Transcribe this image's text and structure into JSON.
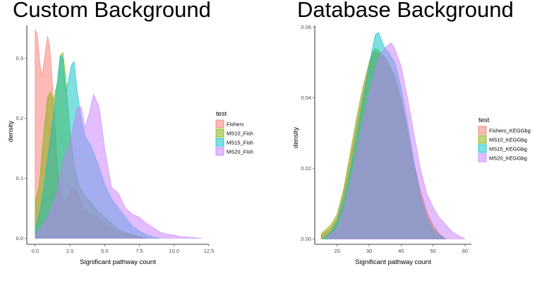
{
  "titles": {
    "left": "Custom Background",
    "right": "Database Background"
  },
  "chart_data": [
    {
      "type": "area",
      "title": "Custom Background",
      "xlabel": "Significant pathway count",
      "ylabel": "density",
      "xlim": [
        -0.6,
        12.5
      ],
      "ylim": [
        -0.01,
        0.355
      ],
      "xticks": [
        0,
        2.5,
        5,
        7.5,
        10,
        12.5
      ],
      "xtick_labels": [
        "0.0",
        "2.5",
        "5.0",
        "7.5",
        "10.0",
        "12.5"
      ],
      "yticks": [
        0,
        0.1,
        0.2,
        0.3
      ],
      "ytick_labels": [
        "0.0",
        "0.1",
        "0.2",
        "0.3"
      ],
      "grid": false,
      "legend_title": "test",
      "legend_position": "right",
      "series": [
        {
          "name": "Fishers",
          "color": "#F8766D",
          "x": [
            0,
            0.15,
            0.35,
            0.5,
            0.7,
            0.9,
            1.05,
            1.2,
            1.4,
            1.6,
            1.8,
            2.0,
            2.3,
            2.6,
            3.0,
            3.5,
            4.0,
            4.5,
            5.0,
            5.5,
            6.0,
            6.5,
            7.0,
            7.5,
            8.0
          ],
          "y": [
            0.348,
            0.34,
            0.29,
            0.27,
            0.305,
            0.337,
            0.32,
            0.27,
            0.2,
            0.12,
            0.075,
            0.06,
            0.065,
            0.085,
            0.08,
            0.05,
            0.04,
            0.035,
            0.025,
            0.018,
            0.01,
            0.008,
            0.006,
            0.003,
            0.0
          ]
        },
        {
          "name": "MS10_Fish",
          "color": "#7CAE00",
          "x": [
            0,
            0.3,
            0.6,
            0.9,
            1.1,
            1.3,
            1.6,
            1.8,
            2.0,
            2.2,
            2.5,
            2.8,
            3.2,
            3.6,
            4.0,
            4.5,
            5.0,
            5.5,
            6.0,
            6.5,
            7.0,
            7.5,
            8.0
          ],
          "y": [
            0.06,
            0.09,
            0.17,
            0.235,
            0.244,
            0.23,
            0.26,
            0.305,
            0.31,
            0.27,
            0.18,
            0.12,
            0.085,
            0.07,
            0.06,
            0.045,
            0.035,
            0.025,
            0.015,
            0.01,
            0.006,
            0.003,
            0.0
          ]
        },
        {
          "name": "MS15_Fish",
          "color": "#00BFC4",
          "x": [
            0,
            0.3,
            0.6,
            1.0,
            1.4,
            1.8,
            2.0,
            2.2,
            2.4,
            2.6,
            2.8,
            3.0,
            3.3,
            3.6,
            4.0,
            4.5,
            5.0,
            5.5,
            6.0,
            6.5,
            7.0,
            7.5,
            8.0,
            8.5,
            9.0
          ],
          "y": [
            0.015,
            0.04,
            0.08,
            0.15,
            0.22,
            0.305,
            0.3,
            0.245,
            0.265,
            0.288,
            0.295,
            0.25,
            0.2,
            0.17,
            0.155,
            0.125,
            0.09,
            0.065,
            0.05,
            0.035,
            0.02,
            0.012,
            0.006,
            0.002,
            0.0
          ]
        },
        {
          "name": "MS20_Fish",
          "color": "#C77CFF",
          "x": [
            0,
            0.5,
            1.0,
            1.5,
            2.0,
            2.5,
            3.0,
            3.3,
            3.6,
            3.9,
            4.2,
            4.6,
            5.0,
            5.5,
            6.0,
            6.5,
            7.0,
            7.5,
            8.0,
            8.5,
            9.0,
            9.5,
            10.0,
            10.5,
            11.0,
            11.5,
            12.0
          ],
          "y": [
            0.005,
            0.02,
            0.04,
            0.07,
            0.13,
            0.16,
            0.215,
            0.22,
            0.185,
            0.21,
            0.24,
            0.22,
            0.15,
            0.085,
            0.075,
            0.05,
            0.04,
            0.035,
            0.025,
            0.018,
            0.01,
            0.007,
            0.005,
            0.003,
            0.002,
            0.001,
            0.0
          ]
        }
      ]
    },
    {
      "type": "area",
      "title": "Database Background",
      "xlabel": "Significant pathway count",
      "ylabel": "density",
      "xlim": [
        13,
        62
      ],
      "ylim": [
        -0.0015,
        0.0605
      ],
      "xticks": [
        20,
        30,
        40,
        50,
        60
      ],
      "xtick_labels": [
        "20",
        "30",
        "40",
        "50",
        "60"
      ],
      "yticks": [
        0,
        0.02,
        0.04,
        0.06
      ],
      "ytick_labels": [
        "0.00",
        "0.02",
        "0.04",
        "0.06"
      ],
      "grid": false,
      "legend_title": "test",
      "legend_position": "right",
      "series": [
        {
          "name": "Fishers_KEGGbg",
          "color": "#F8766D",
          "x": [
            15,
            18,
            20,
            22,
            24,
            26,
            28,
            30,
            31,
            32,
            33,
            34,
            35,
            36,
            38,
            40,
            42,
            44,
            46,
            48,
            50,
            52,
            54
          ],
          "y": [
            0.001,
            0.003,
            0.006,
            0.013,
            0.022,
            0.032,
            0.041,
            0.049,
            0.052,
            0.053,
            0.0525,
            0.052,
            0.051,
            0.05,
            0.046,
            0.04,
            0.031,
            0.022,
            0.014,
            0.008,
            0.004,
            0.0015,
            0.0
          ]
        },
        {
          "name": "MS10_KEGGbg",
          "color": "#7CAE00",
          "x": [
            15,
            18,
            20,
            22,
            24,
            26,
            28,
            30,
            31,
            32,
            33,
            34,
            35,
            36,
            38,
            40,
            42,
            44,
            46,
            48,
            50,
            52,
            54
          ],
          "y": [
            0.0015,
            0.004,
            0.007,
            0.014,
            0.024,
            0.034,
            0.043,
            0.05,
            0.053,
            0.054,
            0.0535,
            0.0525,
            0.0515,
            0.05,
            0.046,
            0.039,
            0.03,
            0.021,
            0.013,
            0.007,
            0.0035,
            0.0012,
            0.0
          ]
        },
        {
          "name": "MS15_KEGGbg",
          "color": "#00BFC4",
          "x": [
            16,
            18,
            20,
            22,
            24,
            26,
            28,
            30,
            31,
            32,
            33,
            34,
            35,
            36,
            38,
            40,
            42,
            44,
            46,
            48,
            50,
            52,
            54
          ],
          "y": [
            0.0005,
            0.002,
            0.005,
            0.011,
            0.019,
            0.029,
            0.039,
            0.049,
            0.054,
            0.058,
            0.0585,
            0.056,
            0.054,
            0.053,
            0.05,
            0.043,
            0.033,
            0.022,
            0.012,
            0.0055,
            0.0025,
            0.001,
            0.0
          ]
        },
        {
          "name": "MS20_KEGGbg",
          "color": "#C77CFF",
          "x": [
            17,
            20,
            22,
            24,
            26,
            28,
            30,
            32,
            33,
            34,
            35,
            36,
            37,
            38,
            40,
            42,
            44,
            46,
            48,
            50,
            52,
            54,
            56,
            58,
            60
          ],
          "y": [
            0.0005,
            0.003,
            0.008,
            0.015,
            0.024,
            0.033,
            0.041,
            0.048,
            0.051,
            0.053,
            0.054,
            0.055,
            0.0555,
            0.054,
            0.049,
            0.04,
            0.03,
            0.02,
            0.013,
            0.009,
            0.006,
            0.004,
            0.002,
            0.001,
            0.0
          ]
        }
      ]
    }
  ]
}
